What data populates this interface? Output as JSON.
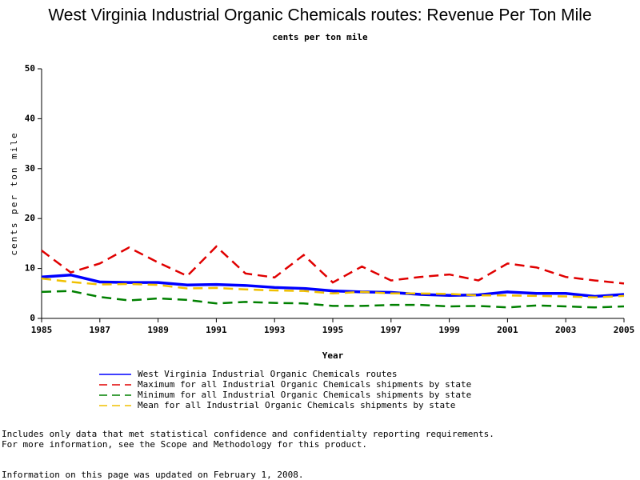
{
  "chart_data": {
    "type": "line",
    "title": "West Virginia Industrial Organic Chemicals routes: Revenue Per Ton Mile",
    "subtitle": "cents per ton mile",
    "x_label": "Year",
    "y_label": "cents per ton mile",
    "x": [
      1985,
      1986,
      1987,
      1988,
      1989,
      1990,
      1991,
      1992,
      1993,
      1994,
      1995,
      1996,
      1997,
      1998,
      1999,
      2000,
      2001,
      2002,
      2003,
      2004,
      2005
    ],
    "xlim": [
      1985,
      2005
    ],
    "xticks": [
      1985,
      1987,
      1989,
      1991,
      1993,
      1995,
      1997,
      1999,
      2001,
      2003,
      2005
    ],
    "ylim": [
      0,
      50
    ],
    "yticks": [
      0,
      10,
      20,
      30,
      40,
      50
    ],
    "series": [
      {
        "name": "West Virginia Industrial Organic Chemicals routes",
        "color": "#0000ff",
        "dashed": false,
        "values": [
          8.3,
          8.7,
          7.3,
          7.2,
          7.2,
          6.7,
          6.8,
          6.6,
          6.2,
          6.0,
          5.5,
          5.3,
          5.2,
          4.8,
          4.6,
          4.7,
          5.3,
          5.0,
          5.0,
          4.4,
          4.8
        ]
      },
      {
        "name": "Maximum for all Industrial Organic Chemicals shipments by state",
        "color": "#e00000",
        "dashed": true,
        "values": [
          13.6,
          9.2,
          11.0,
          14.2,
          11.2,
          8.5,
          14.4,
          9.0,
          8.2,
          12.7,
          7.2,
          10.4,
          7.6,
          8.3,
          8.8,
          7.6,
          11.0,
          10.2,
          8.3,
          7.6,
          7.0
        ]
      },
      {
        "name": "Minimum for all Industrial Organic Chemicals shipments by state",
        "color": "#008000",
        "dashed": true,
        "values": [
          5.3,
          5.5,
          4.3,
          3.6,
          4.0,
          3.7,
          3.0,
          3.3,
          3.1,
          3.0,
          2.5,
          2.5,
          2.7,
          2.7,
          2.4,
          2.5,
          2.2,
          2.6,
          2.4,
          2.2,
          2.4
        ]
      },
      {
        "name": "Mean for all Industrial Organic Chemicals shipments by state",
        "color": "#f0c000",
        "dashed": true,
        "values": [
          8.0,
          7.3,
          6.8,
          6.9,
          6.7,
          6.0,
          6.1,
          5.8,
          5.6,
          5.5,
          5.0,
          5.3,
          5.0,
          5.0,
          4.9,
          4.6,
          4.6,
          4.5,
          4.4,
          4.2,
          4.5
        ]
      }
    ]
  },
  "notes": [
    "Includes only data that met statistical confidence and confidentialty reporting requirements.",
    "For more information, see the Scope and Methodology for this product.",
    "Information on this page was updated on February 1, 2008."
  ]
}
